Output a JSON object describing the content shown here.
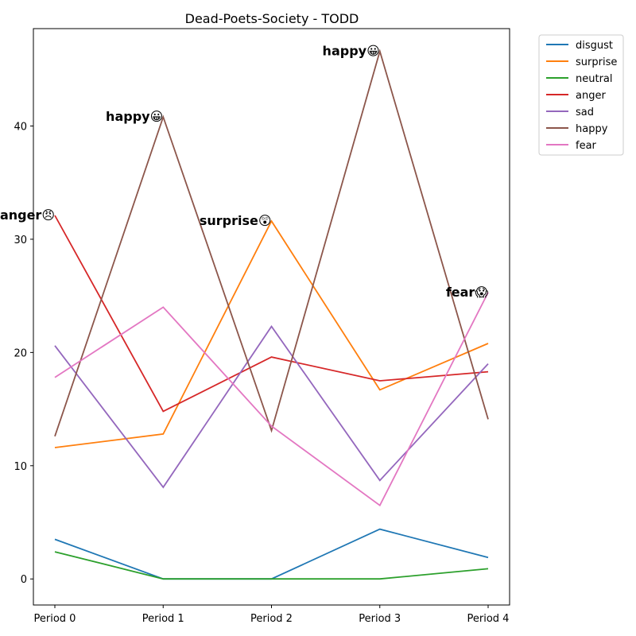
{
  "chart_data": {
    "type": "line",
    "title": "Dead-Poets-Society - TODD",
    "xlabel": "",
    "ylabel": "",
    "categories": [
      "Period 0",
      "Period 1",
      "Period 2",
      "Period 3",
      "Period 4"
    ],
    "ylim": [
      -2.3,
      48.6
    ],
    "yticks": [
      0,
      10,
      20,
      30,
      40
    ],
    "grid": false,
    "legend_position": "outside-top-right",
    "series": [
      {
        "name": "disgust",
        "color": "#1f77b4",
        "values": [
          3.5,
          0.0,
          0.0,
          4.4,
          1.9
        ]
      },
      {
        "name": "surprise",
        "color": "#ff7f0e",
        "values": [
          11.6,
          12.8,
          31.6,
          16.7,
          20.8
        ]
      },
      {
        "name": "neutral",
        "color": "#2ca02c",
        "values": [
          2.4,
          0.0,
          0.0,
          0.0,
          0.9
        ]
      },
      {
        "name": "anger",
        "color": "#d62728",
        "values": [
          32.1,
          14.8,
          19.6,
          17.5,
          18.3
        ]
      },
      {
        "name": "sad",
        "color": "#9467bd",
        "values": [
          20.6,
          8.1,
          22.3,
          8.7,
          19.0
        ]
      },
      {
        "name": "happy",
        "color": "#8c564b",
        "values": [
          12.6,
          40.8,
          13.1,
          46.6,
          14.1
        ]
      },
      {
        "name": "fear",
        "color": "#e377c2",
        "values": [
          17.8,
          24.0,
          13.5,
          6.5,
          25.3
        ]
      }
    ],
    "annotations": [
      {
        "text": "anger😠",
        "x": 0,
        "y": 32.1
      },
      {
        "text": "happy😀",
        "x": 1,
        "y": 40.8
      },
      {
        "text": "surprise😲",
        "x": 2,
        "y": 31.6
      },
      {
        "text": "happy😀",
        "x": 3,
        "y": 46.6
      },
      {
        "text": "fear😱",
        "x": 4,
        "y": 25.3
      }
    ]
  }
}
